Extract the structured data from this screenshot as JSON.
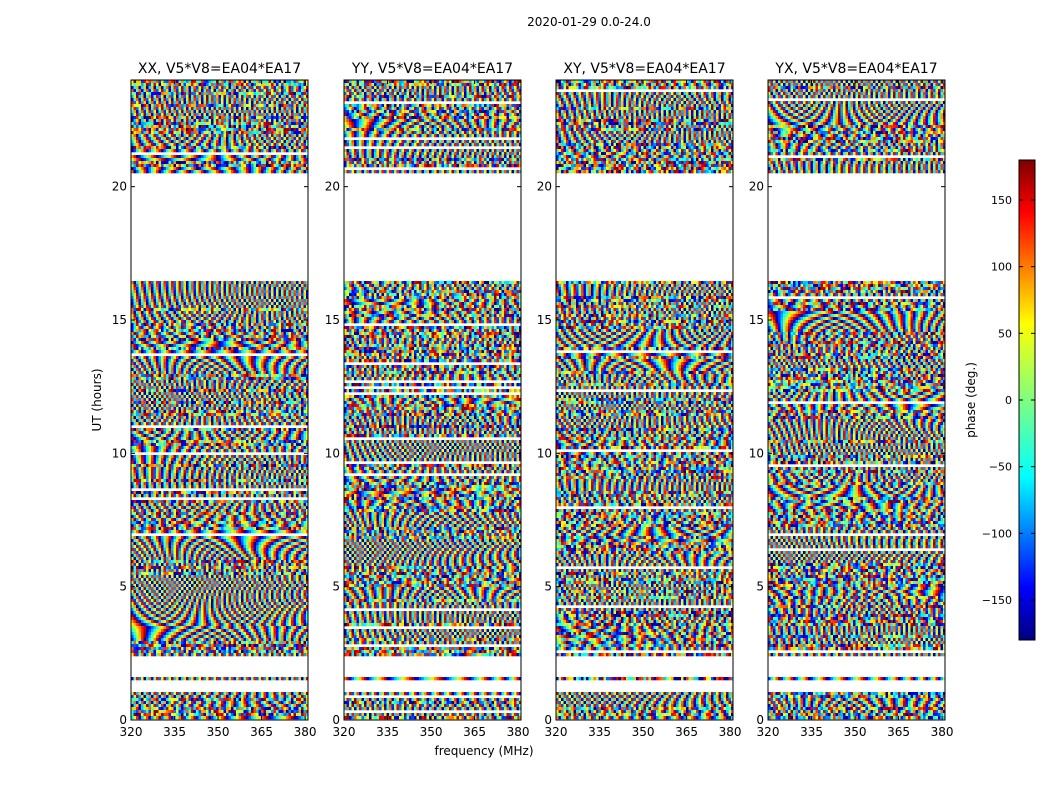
{
  "figure": {
    "suptitle": "2020-01-29 0.0-24.0",
    "xlabel": "frequency (MHz)",
    "ylabel": "UT (hours)"
  },
  "chart_data": {
    "type": "heatmap",
    "title": "2020-01-29 0.0-24.0",
    "xlabel": "frequency (MHz)",
    "ylabel": "UT (hours)",
    "xlim": [
      320,
      381
    ],
    "ylim": [
      0,
      24
    ],
    "xticks": [
      320,
      335,
      350,
      365,
      380
    ],
    "yticks": [
      0,
      5,
      10,
      15,
      20
    ],
    "panels": [
      {
        "title": "XX, V5*V8=EA04*EA17",
        "polarization": "XX"
      },
      {
        "title": "YY, V5*V8=EA04*EA17",
        "polarization": "YY"
      },
      {
        "title": "XY, V5*V8=EA04*EA17",
        "polarization": "XY"
      },
      {
        "title": "YX, V5*V8=EA04*EA17",
        "polarization": "YX"
      }
    ],
    "data_gaps_ut_hours": [
      [
        1.1,
        1.5
      ],
      [
        1.65,
        2.35
      ],
      [
        16.45,
        20.5
      ]
    ],
    "colorbar": {
      "label": "phase (deg.)",
      "range": [
        -180,
        180
      ],
      "ticks": [
        -150,
        -100,
        -50,
        0,
        50,
        100,
        150
      ],
      "colormap": "jet"
    }
  }
}
